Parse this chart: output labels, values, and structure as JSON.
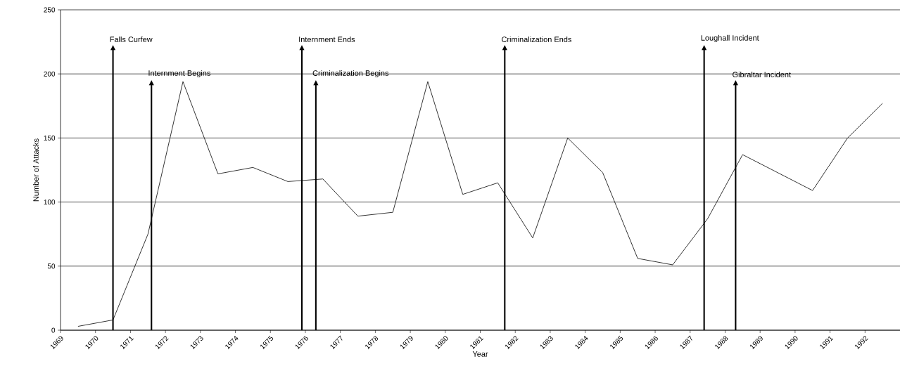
{
  "chart_data": {
    "type": "line",
    "xlabel": "Year",
    "ylabel": "Number of Attacks",
    "x": [
      1969.5,
      1970.5,
      1971.5,
      1972.5,
      1973.5,
      1974.5,
      1975.5,
      1976.5,
      1977.5,
      1978.5,
      1979.5,
      1980.5,
      1981.5,
      1982.5,
      1983.5,
      1984.5,
      1985.5,
      1986.5,
      1987.5,
      1988.5,
      1989.5,
      1990.5,
      1991.5,
      1992.5
    ],
    "values": [
      3,
      8,
      75,
      194,
      122,
      127,
      116,
      118,
      89,
      92,
      194,
      106,
      115,
      72,
      150,
      123,
      56,
      51,
      87,
      137,
      123,
      109,
      150,
      177
    ],
    "color": "#000000",
    "marker": "none",
    "line_style": "solid",
    "xlim": [
      1969,
      1993
    ],
    "xticks": [
      1969,
      1970,
      1971,
      1972,
      1973,
      1974,
      1975,
      1976,
      1977,
      1978,
      1979,
      1980,
      1981,
      1982,
      1983,
      1984,
      1985,
      1986,
      1987,
      1988,
      1989,
      1990,
      1991,
      1992
    ],
    "ylim": [
      0,
      250
    ],
    "yticks": [
      0,
      50,
      100,
      150,
      200,
      250
    ],
    "grid": "y",
    "ref_lines": [
      {
        "axis": "x",
        "value": 1970.5,
        "label": "Falls Curfew"
      },
      {
        "axis": "x",
        "value": 1971.6,
        "label": "Internment Begins"
      },
      {
        "axis": "x",
        "value": 1975.9,
        "label": "Internment Ends"
      },
      {
        "axis": "x",
        "value": 1976.3,
        "label": "Criminalization Begins"
      },
      {
        "axis": "x",
        "value": 1981.7,
        "label": "Criminalization Ends"
      },
      {
        "axis": "x",
        "value": 1987.4,
        "label": "Loughall Incident"
      },
      {
        "axis": "x",
        "value": 1988.3,
        "label": "Gibraltar Incident"
      }
    ]
  }
}
